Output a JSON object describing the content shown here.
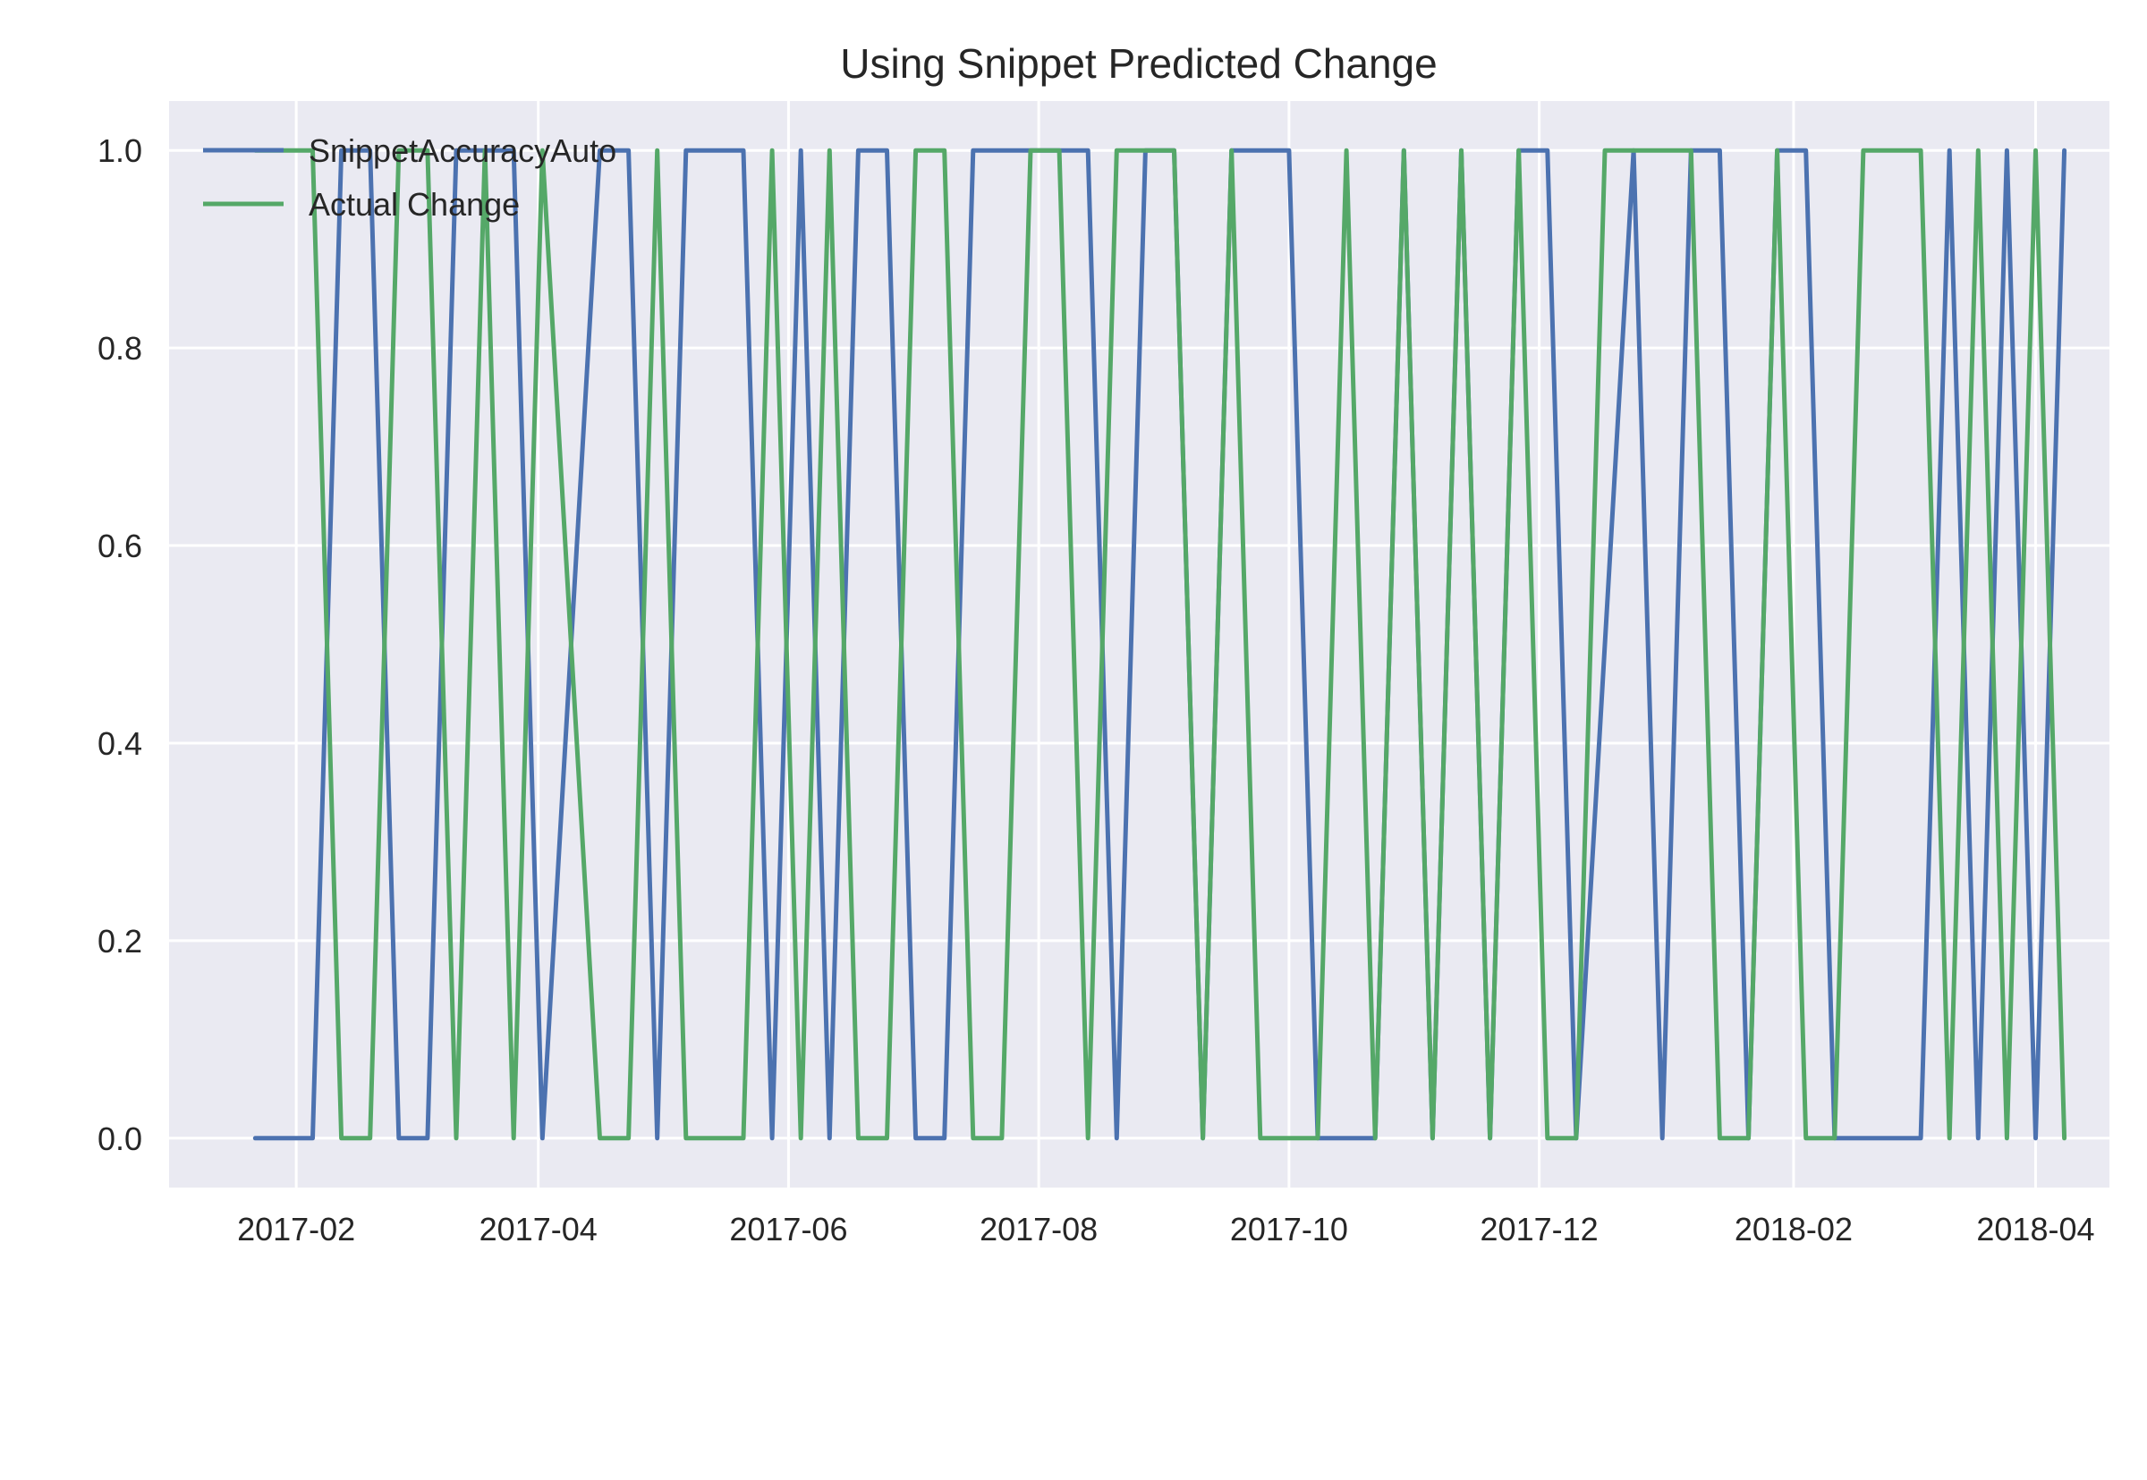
{
  "chart_data": {
    "type": "line",
    "title": "Using Snippet Predicted Change",
    "xlabel": "",
    "ylabel": "",
    "xlim": [
      "2017-01-01",
      "2018-04-19"
    ],
    "ylim": [
      -0.05,
      1.05
    ],
    "grid": true,
    "legend_position": "top-left",
    "x_ticks": [
      "2017-02",
      "2017-04",
      "2017-06",
      "2017-08",
      "2017-10",
      "2017-12",
      "2018-02",
      "2018-04"
    ],
    "y_ticks": [
      "0.0",
      "0.2",
      "0.4",
      "0.6",
      "0.8",
      "1.0"
    ],
    "x": [
      "2017-01-22",
      "2017-01-29",
      "2017-02-05",
      "2017-02-12",
      "2017-02-19",
      "2017-02-26",
      "2017-03-05",
      "2017-03-12",
      "2017-03-19",
      "2017-03-26",
      "2017-04-02",
      "2017-04-09",
      "2017-04-16",
      "2017-04-23",
      "2017-04-30",
      "2017-05-07",
      "2017-05-14",
      "2017-05-21",
      "2017-05-28",
      "2017-06-04",
      "2017-06-11",
      "2017-06-18",
      "2017-06-25",
      "2017-07-02",
      "2017-07-09",
      "2017-07-16",
      "2017-07-23",
      "2017-07-30",
      "2017-08-06",
      "2017-08-13",
      "2017-08-20",
      "2017-08-27",
      "2017-09-03",
      "2017-09-10",
      "2017-09-17",
      "2017-09-24",
      "2017-10-01",
      "2017-10-08",
      "2017-10-15",
      "2017-10-22",
      "2017-10-29",
      "2017-11-05",
      "2017-11-12",
      "2017-11-19",
      "2017-11-26",
      "2017-12-03",
      "2017-12-10",
      "2017-12-17",
      "2017-12-24",
      "2017-12-31",
      "2018-01-07",
      "2018-01-14",
      "2018-01-21",
      "2018-01-28",
      "2018-02-04",
      "2018-02-11",
      "2018-02-18",
      "2018-02-25",
      "2018-03-04",
      "2018-03-11",
      "2018-03-18",
      "2018-03-25",
      "2018-04-01",
      "2018-04-08"
    ],
    "series": [
      {
        "name": "SnippetAccuracyAuto",
        "color": "#4c72b0",
        "values": [
          0,
          0,
          0,
          1,
          1,
          0,
          0,
          1,
          1,
          1,
          0,
          null,
          1,
          1,
          0,
          1,
          1,
          1,
          0,
          1,
          0,
          1,
          1,
          0,
          0,
          1,
          1,
          1,
          1,
          1,
          0,
          1,
          1,
          0,
          1,
          1,
          1,
          0,
          0,
          0,
          1,
          0,
          1,
          0,
          1,
          1,
          0,
          null,
          1,
          0,
          1,
          1,
          0,
          1,
          1,
          0,
          0,
          0,
          0,
          1,
          0,
          1,
          0,
          1
        ]
      },
      {
        "name": "Actual Change",
        "color": "#55a868",
        "values": [
          1,
          1,
          1,
          0,
          0,
          1,
          1,
          0,
          1,
          0,
          1,
          null,
          0,
          0,
          1,
          0,
          0,
          0,
          1,
          0,
          1,
          0,
          0,
          1,
          1,
          0,
          0,
          1,
          1,
          0,
          1,
          1,
          1,
          0,
          1,
          0,
          0,
          0,
          1,
          0,
          1,
          0,
          1,
          0,
          1,
          0,
          0,
          1,
          1,
          1,
          1,
          0,
          0,
          1,
          0,
          0,
          1,
          1,
          1,
          0,
          1,
          0,
          1,
          0
        ]
      }
    ]
  }
}
